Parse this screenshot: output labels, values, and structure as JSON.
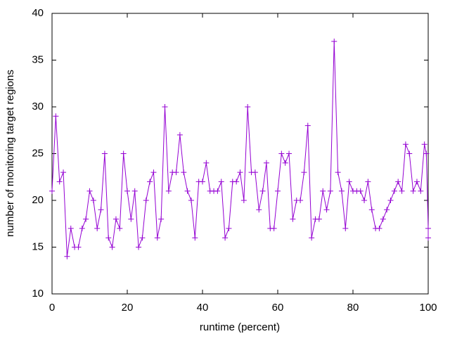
{
  "chart_data": {
    "type": "line",
    "x_label": "runtime (percent)",
    "y_label": "number of monitoring target regions",
    "xlim": [
      0,
      100
    ],
    "xticks": [
      0,
      20,
      40,
      60,
      80,
      100
    ],
    "ylim": [
      10,
      40
    ],
    "yticks": [
      10,
      15,
      20,
      25,
      30,
      35,
      40
    ],
    "x": [
      0,
      1,
      2,
      3,
      4,
      5,
      6,
      7,
      8,
      9,
      10,
      11,
      12,
      13,
      14,
      15,
      16,
      17,
      18,
      19,
      20,
      21,
      22,
      23,
      24,
      25,
      26,
      27,
      28,
      29,
      30,
      31,
      32,
      33,
      34,
      35,
      36,
      37,
      38,
      39,
      40,
      41,
      42,
      43,
      44,
      45,
      46,
      47,
      48,
      49,
      50,
      51,
      52,
      53,
      54,
      55,
      56,
      57,
      58,
      59,
      60,
      61,
      62,
      63,
      64,
      65,
      66,
      67,
      68,
      69,
      70,
      71,
      72,
      73,
      74,
      75,
      76,
      77,
      78,
      79,
      80,
      81,
      82,
      83,
      84,
      85,
      86,
      87,
      88,
      89,
      90,
      91,
      92,
      93,
      94,
      95,
      96,
      97,
      98,
      99,
      99.5,
      100,
      100
    ],
    "series": [
      {
        "color": "#9400d3",
        "values": [
          21,
          29,
          22,
          23,
          14,
          17,
          15,
          15,
          17,
          18,
          21,
          20,
          17,
          19,
          25,
          16,
          15,
          18,
          17,
          25,
          21,
          18,
          21,
          15,
          16,
          20,
          22,
          23,
          16,
          18,
          30,
          21,
          23,
          23,
          27,
          23,
          21,
          20,
          16,
          22,
          22,
          24,
          21,
          21,
          21,
          22,
          16,
          17,
          22,
          22,
          23,
          20,
          30,
          23,
          23,
          19,
          21,
          24,
          17,
          17,
          21,
          25,
          24,
          25,
          18,
          20,
          20,
          23,
          28,
          16,
          18,
          18,
          21,
          19,
          21,
          37,
          23,
          21,
          17,
          22,
          21,
          21,
          21,
          20,
          22,
          19,
          17,
          17,
          18,
          19,
          20,
          21,
          22,
          21,
          26,
          25,
          21,
          22,
          21,
          26,
          25,
          17,
          16
        ]
      }
    ]
  }
}
